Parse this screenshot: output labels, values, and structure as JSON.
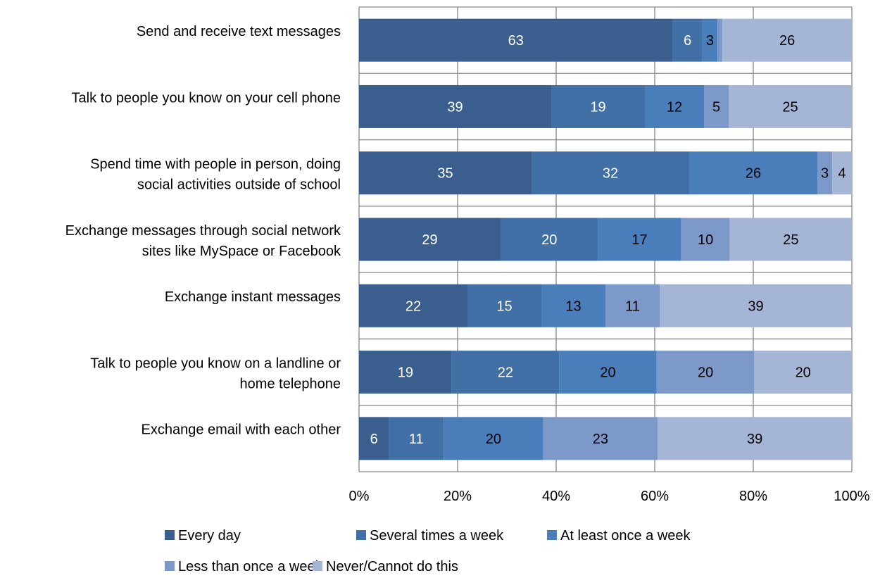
{
  "chart_data": {
    "type": "bar",
    "orientation": "horizontal",
    "stacked": true,
    "percent_stacked": true,
    "categories": [
      [
        "Send and receive text messages"
      ],
      [
        "Talk to people you know on your cell phone"
      ],
      [
        "Spend time with people in person, doing",
        "social activities outside of school"
      ],
      [
        "Exchange messages through social network",
        "sites like MySpace or Facebook"
      ],
      [
        "Exchange instant messages"
      ],
      [
        "Talk to people you know on a landline or",
        "home telephone"
      ],
      [
        "Exchange email with each other"
      ]
    ],
    "series": [
      {
        "name": "Every day",
        "color": "#3A5F8F",
        "label_color": "#ffffff",
        "values": [
          63,
          39,
          35,
          29,
          22,
          19,
          6
        ]
      },
      {
        "name": "Several times a week",
        "color": "#4170A6",
        "label_color": "#ffffff",
        "values": [
          6,
          19,
          32,
          20,
          15,
          22,
          11
        ]
      },
      {
        "name": "At least once a week",
        "color": "#4A7EBB",
        "label_color": "#000000",
        "values": [
          3,
          12,
          26,
          17,
          13,
          20,
          20
        ]
      },
      {
        "name": "Less than once a week",
        "color": "#7C99C9",
        "label_color": "#000000",
        "values": [
          1,
          5,
          3,
          10,
          11,
          20,
          23
        ]
      },
      {
        "name": "Never/Cannot do this",
        "color": "#A5B5D6",
        "label_color": "#000000",
        "values": [
          26,
          25,
          4,
          25,
          39,
          20,
          39
        ]
      }
    ],
    "hidden_labels": [
      [
        0,
        3
      ]
    ],
    "x_ticks": [
      "0%",
      "20%",
      "40%",
      "60%",
      "80%",
      "100%"
    ],
    "xlim": [
      0,
      100
    ],
    "grid": true,
    "legend_position": "bottom",
    "title": "",
    "xlabel": "",
    "ylabel": ""
  }
}
